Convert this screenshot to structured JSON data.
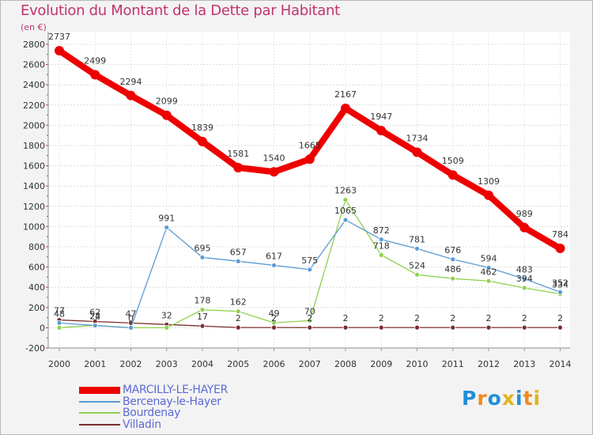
{
  "title": "Evolution du Montant de la Dette par Habitant",
  "unit_label": "(en €)",
  "logo": {
    "text": "Proxiti",
    "letters": [
      "P",
      "r",
      "o",
      "x",
      "i",
      "t",
      "i"
    ],
    "colors": [
      "#1f8fd6",
      "#f08a1c",
      "#1f8fd6",
      "#e0b41a",
      "#1f8fd6",
      "#f08a1c",
      "#e0b41a"
    ]
  },
  "chart_data": {
    "type": "line",
    "x": [
      "2000",
      "2001",
      "2002",
      "2003",
      "2004",
      "2005",
      "2006",
      "2007",
      "2008",
      "2009",
      "2010",
      "2011",
      "2012",
      "2013",
      "2014"
    ],
    "ylim": [
      -200,
      2800
    ],
    "yticks": [
      "-200",
      "0",
      "200",
      "400",
      "600",
      "800",
      "1000",
      "1200",
      "1400",
      "1600",
      "1800",
      "2000",
      "2200",
      "2400",
      "2600",
      "2800"
    ],
    "grid": true,
    "legend_position": "bottom-left",
    "series": [
      {
        "name": "MARCILLY-LE-HAYER",
        "color": "#ee0000",
        "values": [
          2737,
          2499,
          2294,
          2099,
          1839,
          1581,
          1540,
          1665,
          2167,
          1947,
          1734,
          1509,
          1309,
          989,
          784
        ],
        "labels": [
          "2737",
          "2499",
          "2294",
          "2099",
          "1839",
          "1581",
          "1540",
          "1665",
          "2167",
          "1947",
          "1734",
          "1509",
          "1309",
          "989",
          "784"
        ]
      },
      {
        "name": "Bercenay-le-Hayer",
        "color": "#5b9bd5",
        "values": [
          48,
          22,
          0,
          991,
          695,
          657,
          617,
          575,
          1065,
          872,
          781,
          676,
          594,
          483,
          352
        ],
        "labels": [
          "48",
          "22",
          "0",
          "991",
          "695",
          "657",
          "617",
          "575",
          "1065",
          "872",
          "781",
          "676",
          "594",
          "483",
          "352"
        ]
      },
      {
        "name": "Bourdenay",
        "color": "#8fd14f",
        "values": [
          0,
          24,
          0,
          0,
          178,
          162,
          49,
          70,
          1263,
          718,
          524,
          486,
          462,
          394,
          334
        ],
        "labels": [
          "",
          "24",
          "",
          "",
          "178",
          "162",
          "49",
          "70",
          "1263",
          "718",
          "524",
          "486",
          "462",
          "394",
          "334"
        ]
      },
      {
        "name": "Villadin",
        "color": "#7a2e2e",
        "values": [
          77,
          62,
          47,
          32,
          17,
          2,
          2,
          2,
          2,
          2,
          2,
          2,
          2,
          2,
          2
        ],
        "labels": [
          "77",
          "62",
          "47",
          "32",
          "17",
          "2",
          "2",
          "2",
          "2",
          "2",
          "2",
          "2",
          "2",
          "2",
          "2"
        ]
      }
    ]
  }
}
